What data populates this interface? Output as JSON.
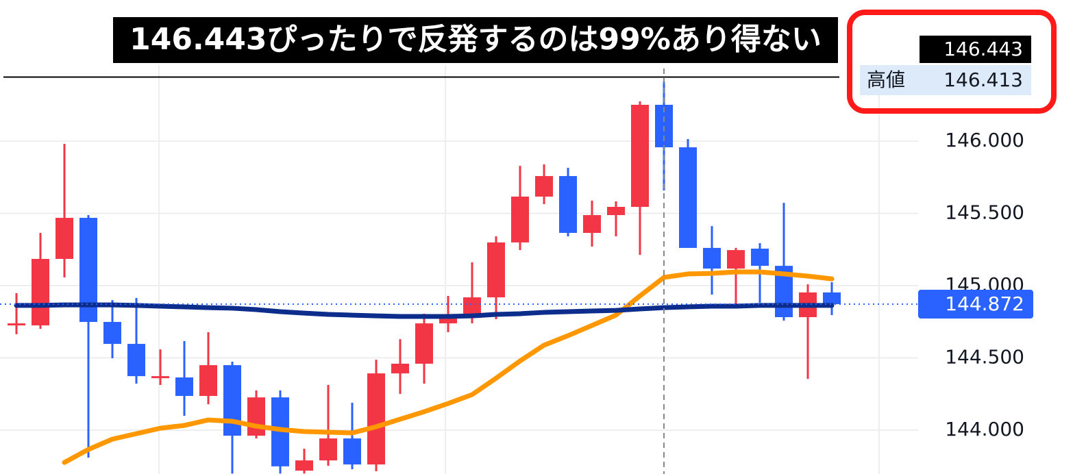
{
  "chart_data": {
    "type": "candlestick",
    "title": "146.443ぴったりで反発するのは99%あり得ない",
    "categories": [
      null,
      null,
      null,
      null,
      null,
      null,
      null,
      null,
      null,
      null,
      null,
      null,
      null,
      null,
      null,
      null,
      null,
      null,
      null,
      null,
      null,
      null,
      null,
      null,
      null,
      null,
      null,
      null,
      null,
      null,
      null,
      null,
      null,
      null,
      null
    ],
    "open": [
      144.739,
      144.725,
      145.185,
      145.469,
      144.749,
      144.597,
      144.374,
      144.365,
      144.237,
      144.45,
      143.962,
      144.227,
      143.72,
      143.791,
      143.943,
      143.763,
      144.393,
      144.46,
      144.739,
      144.777,
      144.919,
      145.299,
      145.616,
      145.758,
      145.365,
      145.488,
      145.545,
      146.251,
      145.957,
      145.261,
      145.118,
      145.256,
      145.137,
      144.782,
      144.953
    ],
    "high": [
      144.948,
      145.365,
      145.981,
      145.488,
      144.9,
      144.915,
      144.559,
      144.616,
      144.678,
      144.474,
      144.275,
      144.275,
      143.872,
      144.313,
      144.19,
      144.488,
      144.63,
      144.806,
      144.929,
      145.161,
      145.341,
      145.829,
      145.839,
      145.815,
      145.588,
      145.583,
      146.275,
      146.413,
      146.014,
      145.412,
      145.261,
      145.294,
      145.573,
      145.009,
      145.024
    ],
    "low": [
      144.664,
      144.701,
      145.057,
      143.81,
      144.498,
      144.322,
      144.313,
      144.1,
      144.18,
      143.7,
      143.943,
      143.7,
      143.7,
      143.754,
      143.73,
      143.716,
      144.251,
      144.322,
      144.678,
      144.739,
      144.768,
      145.246,
      145.564,
      145.341,
      145.27,
      145.341,
      145.213,
      145.659,
      145.261,
      144.938,
      144.844,
      144.882,
      144.758,
      144.355,
      144.796
    ],
    "close": [
      144.739,
      145.185,
      145.469,
      144.749,
      144.597,
      144.374,
      144.374,
      144.237,
      144.45,
      143.962,
      144.227,
      143.75,
      143.791,
      143.943,
      143.763,
      144.393,
      144.46,
      144.739,
      144.787,
      144.919,
      145.299,
      145.616,
      145.758,
      145.365,
      145.488,
      145.545,
      146.251,
      145.957,
      145.261,
      145.118,
      145.246,
      145.137,
      144.782,
      144.953,
      144.872
    ],
    "up_color": "#f23645",
    "down_color": "#2962ff",
    "lines": [
      {
        "color": "#ff9800",
        "values": [
          null,
          null,
          143.777,
          143.867,
          143.938,
          143.976,
          144.014,
          144.033,
          144.071,
          144.062,
          144.028,
          144.005,
          143.991,
          143.986,
          143.981,
          144.024,
          144.076,
          144.128,
          144.185,
          144.246,
          144.36,
          144.479,
          144.588,
          144.654,
          144.725,
          144.796,
          144.929,
          145.057,
          145.081,
          145.085,
          145.095,
          145.095,
          145.081,
          145.066,
          145.047
        ]
      },
      {
        "color": "#0d2d8c",
        "values": [
          144.863,
          144.863,
          144.867,
          144.867,
          144.867,
          144.863,
          144.858,
          144.853,
          144.848,
          144.844,
          144.834,
          144.82,
          144.81,
          144.801,
          144.796,
          144.791,
          144.787,
          144.787,
          144.787,
          144.791,
          144.801,
          144.806,
          144.815,
          144.82,
          144.825,
          144.829,
          144.839,
          144.848,
          144.853,
          144.858,
          144.858,
          144.863,
          144.863,
          144.863,
          144.863
        ]
      }
    ],
    "ylim": [
      143.697,
      146.976
    ],
    "yticks": [
      {
        "value": 144,
        "label": "144.000"
      },
      {
        "value": 144.5,
        "label": "144.500"
      },
      {
        "value": 145,
        "label": "145.000"
      },
      {
        "value": 145.5,
        "label": "145.500"
      },
      {
        "value": 146,
        "label": "146.000"
      }
    ],
    "grid": true,
    "horizontal_line": 146.443,
    "current_price": 144.872,
    "high_label": "高値",
    "high_value": 146.413
  }
}
